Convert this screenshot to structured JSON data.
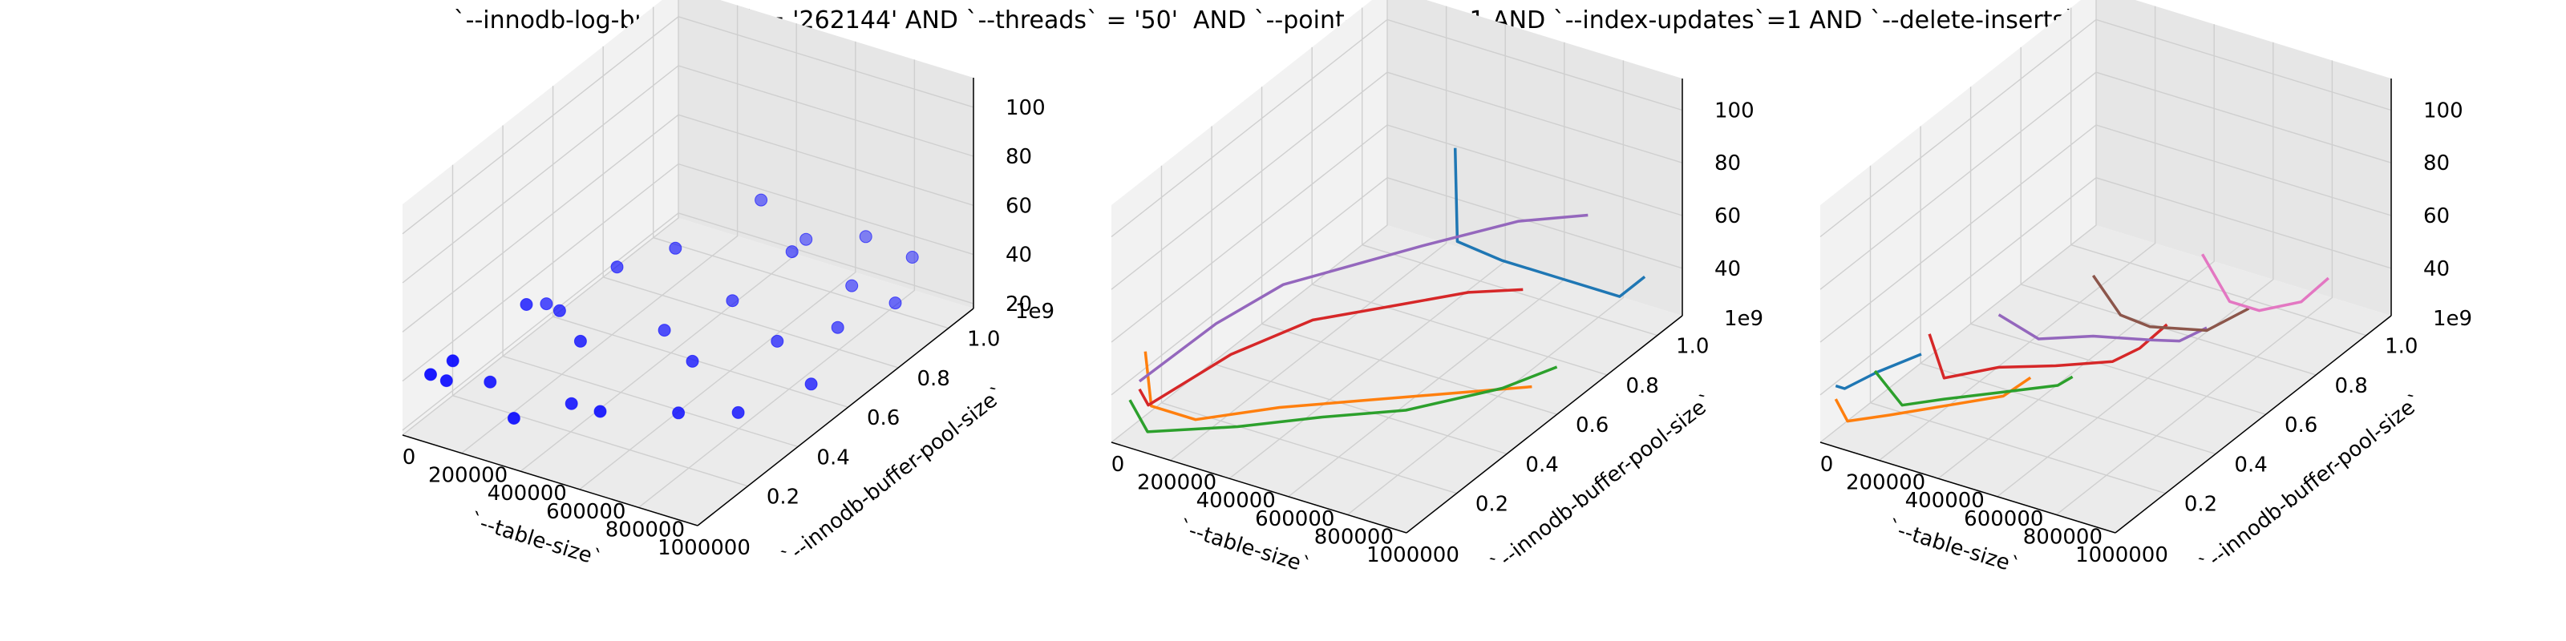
{
  "title": "`--innodb-log-buffer-size` = '262144' AND `--threads` = '50'  AND `--point-selects`=1 AND `--index-updates`=1 AND `--delete-inserts`=1",
  "colors": {
    "pane": "#f2f2f2",
    "grid": "#cfcfcf",
    "scatter": "#0000ff",
    "lines": [
      "#1f77b4",
      "#ff7f0e",
      "#2ca02c",
      "#d62728",
      "#9467bd",
      "#8c564b",
      "#e377c2"
    ]
  },
  "chart_data": [
    {
      "type": "scatter",
      "xlabel": "`--table-size`",
      "ylabel": "`--innodb-buffer-pool-size`",
      "ylabel_exponent": "1e9",
      "x_ticks": [
        "0",
        "200000",
        "400000",
        "600000",
        "800000",
        "1000000"
      ],
      "y_ticks": [
        "0.2",
        "0.4",
        "0.6",
        "0.8",
        "1.0"
      ],
      "z_ticks": [
        "20",
        "40",
        "60",
        "80",
        "100"
      ],
      "xlim": [
        0,
        1000000
      ],
      "ylim": [
        0,
        1.1
      ],
      "zlim": [
        18,
        112
      ],
      "grid": true,
      "points": [
        {
          "x": 10000,
          "y": 0.1,
          "z": 35
        },
        {
          "x": 30000,
          "y": 0.14,
          "z": 30
        },
        {
          "x": 60000,
          "y": 0.13,
          "z": 40
        },
        {
          "x": 80000,
          "y": 0.4,
          "z": 42
        },
        {
          "x": 20000,
          "y": 0.55,
          "z": 28
        },
        {
          "x": 110000,
          "y": 0.22,
          "z": 26
        },
        {
          "x": 150000,
          "y": 0.45,
          "z": 38
        },
        {
          "x": 200000,
          "y": 0.62,
          "z": 44
        },
        {
          "x": 250000,
          "y": 0.15,
          "z": 22
        },
        {
          "x": 280000,
          "y": 0.38,
          "z": 36
        },
        {
          "x": 330000,
          "y": 0.7,
          "z": 50
        },
        {
          "x": 360000,
          "y": 0.25,
          "z": 24
        },
        {
          "x": 420000,
          "y": 0.55,
          "z": 32
        },
        {
          "x": 450000,
          "y": 0.9,
          "z": 58
        },
        {
          "x": 500000,
          "y": 0.2,
          "z": 30
        },
        {
          "x": 540000,
          "y": 0.68,
          "z": 38
        },
        {
          "x": 560000,
          "y": 0.95,
          "z": 42
        },
        {
          "x": 600000,
          "y": 0.45,
          "z": 34
        },
        {
          "x": 640000,
          "y": 0.8,
          "z": 52
        },
        {
          "x": 680000,
          "y": 0.3,
          "z": 28
        },
        {
          "x": 720000,
          "y": 1.0,
          "z": 45
        },
        {
          "x": 760000,
          "y": 0.6,
          "z": 36
        },
        {
          "x": 800000,
          "y": 0.85,
          "z": 40
        },
        {
          "x": 840000,
          "y": 0.35,
          "z": 30
        },
        {
          "x": 880000,
          "y": 0.7,
          "z": 38
        },
        {
          "x": 920000,
          "y": 0.95,
          "z": 48
        },
        {
          "x": 960000,
          "y": 0.5,
          "z": 34
        },
        {
          "x": 990000,
          "y": 0.8,
          "z": 44
        }
      ]
    },
    {
      "type": "line",
      "xlabel": "`--table-size`",
      "ylabel": "`--innodb-buffer-pool-size`",
      "ylabel_exponent": "1e9",
      "x_ticks": [
        "0",
        "200000",
        "400000",
        "600000",
        "800000",
        "1000000"
      ],
      "y_ticks": [
        "0.2",
        "0.4",
        "0.6",
        "0.8",
        "1.0"
      ],
      "z_ticks": [
        "40",
        "60",
        "80",
        "100"
      ],
      "xlim": [
        0,
        1000000
      ],
      "ylim": [
        0,
        1.1
      ],
      "zlim": [
        22,
        112
      ],
      "grid": true,
      "series": [
        {
          "x": [
            400000,
            450000,
            600000,
            800000,
            1000000,
            1000000
          ],
          "y": [
            0.9,
            0.85,
            0.85,
            0.85,
            0.85,
            0.95
          ],
          "z": [
            80,
            50,
            48,
            48,
            48,
            48
          ]
        },
        {
          "x": [
            30000,
            50000,
            200000,
            400000,
            600000,
            800000,
            1000000
          ],
          "y": [
            0.1,
            0.1,
            0.1,
            0.2,
            0.3,
            0.4,
            0.5
          ],
          "z": [
            50,
            30,
            30,
            34,
            36,
            38,
            40
          ]
        },
        {
          "x": [
            20000,
            80000,
            300000,
            500000,
            700000,
            900000,
            1000000
          ],
          "y": [
            0.05,
            0.05,
            0.15,
            0.25,
            0.35,
            0.5,
            0.6
          ],
          "z": [
            35,
            25,
            27,
            30,
            32,
            36,
            40
          ]
        },
        {
          "x": [
            10000,
            40000,
            150000,
            300000,
            500000,
            700000,
            800000
          ],
          "y": [
            0.1,
            0.1,
            0.3,
            0.45,
            0.55,
            0.6,
            0.7
          ],
          "z": [
            35,
            30,
            38,
            45,
            50,
            58,
            55
          ]
        },
        {
          "x": [
            10000,
            100000,
            200000,
            350000,
            500000,
            700000,
            850000
          ],
          "y": [
            0.1,
            0.3,
            0.45,
            0.55,
            0.65,
            0.8,
            0.9
          ],
          "z": [
            38,
            48,
            55,
            60,
            65,
            70,
            70
          ]
        }
      ]
    },
    {
      "type": "line",
      "xlabel": "`--table-size`",
      "ylabel": "`--innodb-buffer-pool-size`",
      "ylabel_exponent": "1e9",
      "x_ticks": [
        "0",
        "200000",
        "400000",
        "600000",
        "800000",
        "1000000"
      ],
      "y_ticks": [
        "0.2",
        "0.4",
        "0.6",
        "0.8",
        "1.0"
      ],
      "z_ticks": [
        "40",
        "60",
        "80",
        "100"
      ],
      "xlim": [
        0,
        1000000
      ],
      "ylim": [
        0,
        1.1
      ],
      "zlim": [
        22,
        112
      ],
      "grid": true,
      "series": [
        {
          "x": [
            10000,
            40000,
            150000,
            300000
          ],
          "y": [
            0.05,
            0.05,
            0.05,
            0.05
          ],
          "z": [
            40,
            40,
            50,
            62
          ]
        },
        {
          "x": [
            10000,
            50000,
            150000,
            300000,
            450000,
            500000
          ],
          "y": [
            0.05,
            0.05,
            0.1,
            0.15,
            0.2,
            0.25
          ],
          "z": [
            35,
            28,
            30,
            35,
            40,
            45
          ]
        },
        {
          "x": [
            100000,
            150000,
            250000,
            400000,
            550000,
            600000
          ],
          "y": [
            0.1,
            0.15,
            0.2,
            0.25,
            0.3,
            0.3
          ],
          "z": [
            45,
            30,
            32,
            36,
            40,
            45
          ]
        },
        {
          "x": [
            200000,
            250000,
            350000,
            500000,
            650000,
            700000,
            750000
          ],
          "y": [
            0.2,
            0.2,
            0.3,
            0.35,
            0.4,
            0.45,
            0.5
          ],
          "z": [
            55,
            40,
            40,
            42,
            45,
            48,
            55
          ]
        },
        {
          "x": [
            350000,
            400000,
            500000,
            650000,
            750000,
            800000
          ],
          "y": [
            0.3,
            0.4,
            0.5,
            0.55,
            0.55,
            0.6
          ],
          "z": [
            60,
            45,
            42,
            42,
            45,
            48
          ]
        },
        {
          "x": [
            500000,
            550000,
            650000,
            800000,
            900000
          ],
          "y": [
            0.5,
            0.55,
            0.55,
            0.6,
            0.65
          ],
          "z": [
            65,
            48,
            47,
            47,
            55
          ]
        },
        {
          "x": [
            700000,
            750000,
            850000,
            950000,
            1000000
          ],
          "y": [
            0.7,
            0.75,
            0.75,
            0.8,
            0.85
          ],
          "z": [
            65,
            45,
            45,
            48,
            55
          ]
        }
      ]
    }
  ]
}
